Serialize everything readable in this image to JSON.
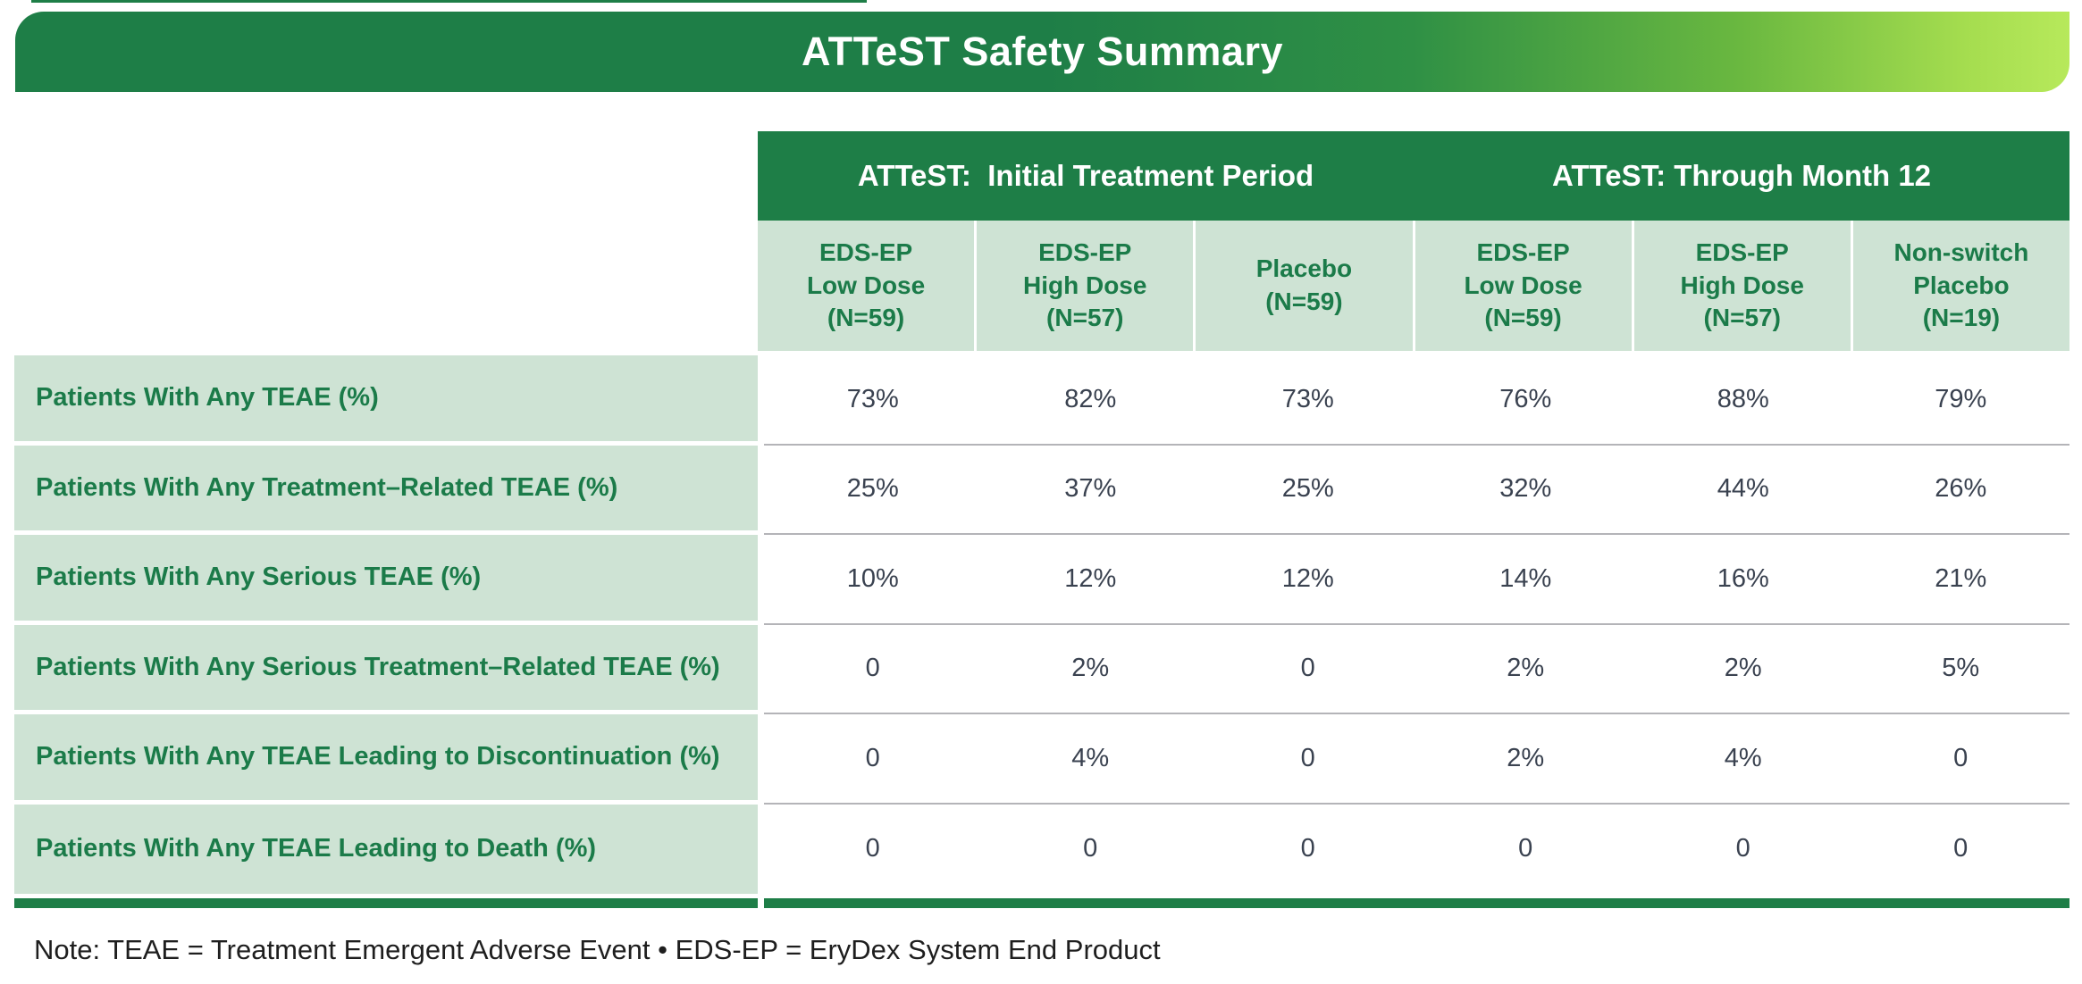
{
  "banner": {
    "title": "ATTeST Safety Summary"
  },
  "colors": {
    "dark_green": "#1e7e47",
    "banner_gradient_end": "#b7e95b",
    "light_green_cell": "#cee3d4",
    "header_text_green": "#1b7b49",
    "data_text": "#3a4250",
    "row_separator_gray": "#b4b4b8"
  },
  "table": {
    "group_headers": [
      {
        "label": "ATTeST:  Initial Treatment Period"
      },
      {
        "label": "ATTeST: Through Month 12"
      }
    ],
    "column_headers": [
      "EDS-EP\nLow Dose\n(N=59)",
      "EDS-EP\nHigh Dose\n(N=57)",
      "Placebo\n(N=59)",
      "EDS-EP\nLow Dose\n(N=59)",
      "EDS-EP\nHigh Dose\n(N=57)",
      "Non-switch\nPlacebo\n(N=19)"
    ],
    "rows": [
      {
        "label": "Patients With Any TEAE (%)",
        "values": [
          "73%",
          "82%",
          "73%",
          "76%",
          "88%",
          "79%"
        ]
      },
      {
        "label": "Patients With Any Treatment–Related TEAE (%)",
        "values": [
          "25%",
          "37%",
          "25%",
          "32%",
          "44%",
          "26%"
        ]
      },
      {
        "label": "Patients With Any Serious TEAE (%)",
        "values": [
          "10%",
          "12%",
          "12%",
          "14%",
          "16%",
          "21%"
        ]
      },
      {
        "label": "Patients With Any Serious Treatment–Related TEAE (%)",
        "values": [
          "0",
          "2%",
          "0",
          "2%",
          "2%",
          "5%"
        ]
      },
      {
        "label": "Patients With Any TEAE Leading to Discontinuation (%)",
        "values": [
          "0",
          "4%",
          "0",
          "2%",
          "4%",
          "0"
        ]
      },
      {
        "label": "Patients With Any TEAE Leading to Death (%)",
        "values": [
          "0",
          "0",
          "0",
          "0",
          "0",
          "0"
        ]
      }
    ]
  },
  "note": "Note: TEAE = Treatment Emergent Adverse Event • EDS-EP = EryDex System End Product"
}
